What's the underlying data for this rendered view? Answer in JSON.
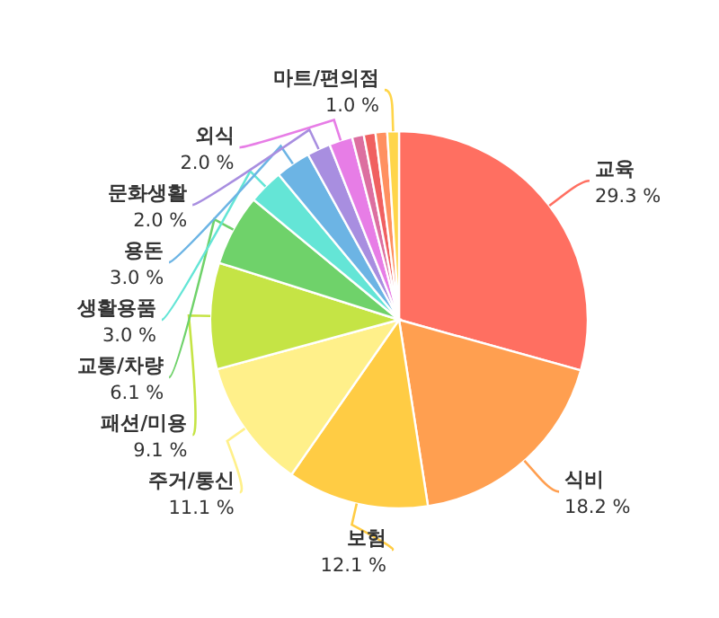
{
  "chart_data": {
    "type": "pie",
    "categories": [
      "교육",
      "식비",
      "보험",
      "주거/통신",
      "패션/미용",
      "교통/차량",
      "생활용품",
      "용돈",
      "문화생활",
      "외식",
      null,
      null,
      null,
      "마트/편의점"
    ],
    "values": [
      29.3,
      18.2,
      12.1,
      11.1,
      9.1,
      6.1,
      3.0,
      3.0,
      2.0,
      2.0,
      1.0,
      1.0,
      1.0,
      1.0
    ],
    "value_labels": [
      "29.3 %",
      "18.2 %",
      "12.1 %",
      "11.1 %",
      "9.1 %",
      "6.1 %",
      "3.0 %",
      "3.0 %",
      "2.0 %",
      "2.0 %",
      null,
      null,
      null,
      "1.0 %"
    ],
    "colors": [
      "#ff6f61",
      "#ff9f50",
      "#ffcc44",
      "#fff08a",
      "#c5e445",
      "#6fd26a",
      "#64e5d6",
      "#6cb4e4",
      "#a88ee0",
      "#e77de6",
      "#dc6fa0",
      "#f06060",
      "#ff9060",
      "#ffd54a"
    ],
    "legend": false
  }
}
